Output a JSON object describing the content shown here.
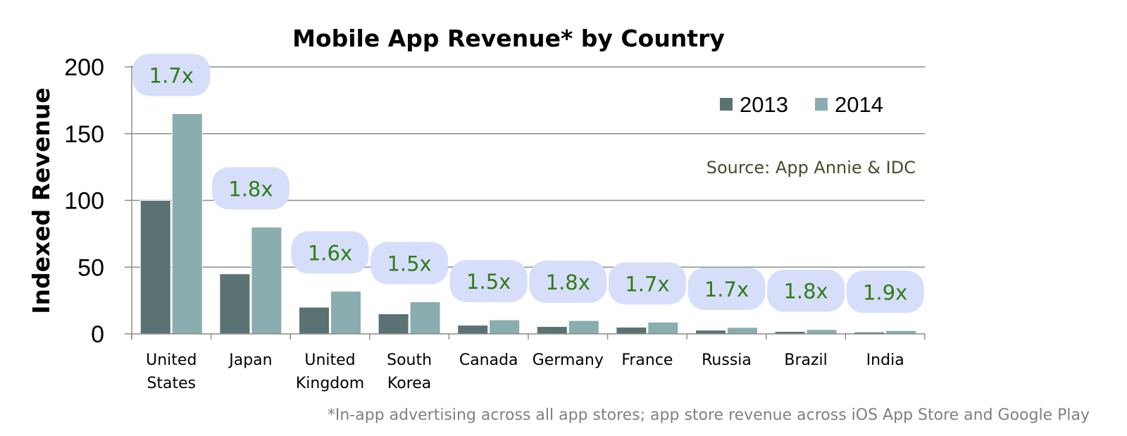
{
  "chart_data": {
    "type": "bar",
    "title": "Mobile App Revenue* by Country",
    "xlabel": "",
    "ylabel": "Indexed Revenue",
    "ylim": [
      0,
      200
    ],
    "yticks": [
      0,
      50,
      100,
      150,
      200
    ],
    "grid": true,
    "categories": [
      [
        "United",
        "States"
      ],
      [
        "Japan"
      ],
      [
        "United",
        "Kingdom"
      ],
      [
        "South",
        "Korea"
      ],
      [
        "Canada"
      ],
      [
        "Germany"
      ],
      [
        "France"
      ],
      [
        "Russia"
      ],
      [
        "Brazil"
      ],
      [
        "India"
      ]
    ],
    "series": [
      {
        "name": "2013",
        "color": "#5a7274",
        "values": [
          100,
          45,
          20,
          15,
          6.5,
          5.5,
          5,
          2.8,
          1.8,
          1.3
        ]
      },
      {
        "name": "2014",
        "color": "#8aadaf",
        "values": [
          165,
          80,
          32,
          24,
          10.5,
          10,
          8.8,
          4.8,
          3.3,
          2.5
        ]
      }
    ],
    "multipliers": [
      "1.7x",
      "1.8x",
      "1.6x",
      "1.5x",
      "1.5x",
      "1.8x",
      "1.7x",
      "1.7x",
      "1.8x",
      "1.9x"
    ],
    "multiplier_text_color": "#2e7d18",
    "multiplier_bubble_color": "#d7def9",
    "legend_position": "top-right",
    "annotation": {
      "text": "Source: App Annie & IDC",
      "color": "#4b4a2a"
    },
    "footnote": "*In-app advertising across all app stores; app store revenue across iOS App Store and Google Play"
  }
}
